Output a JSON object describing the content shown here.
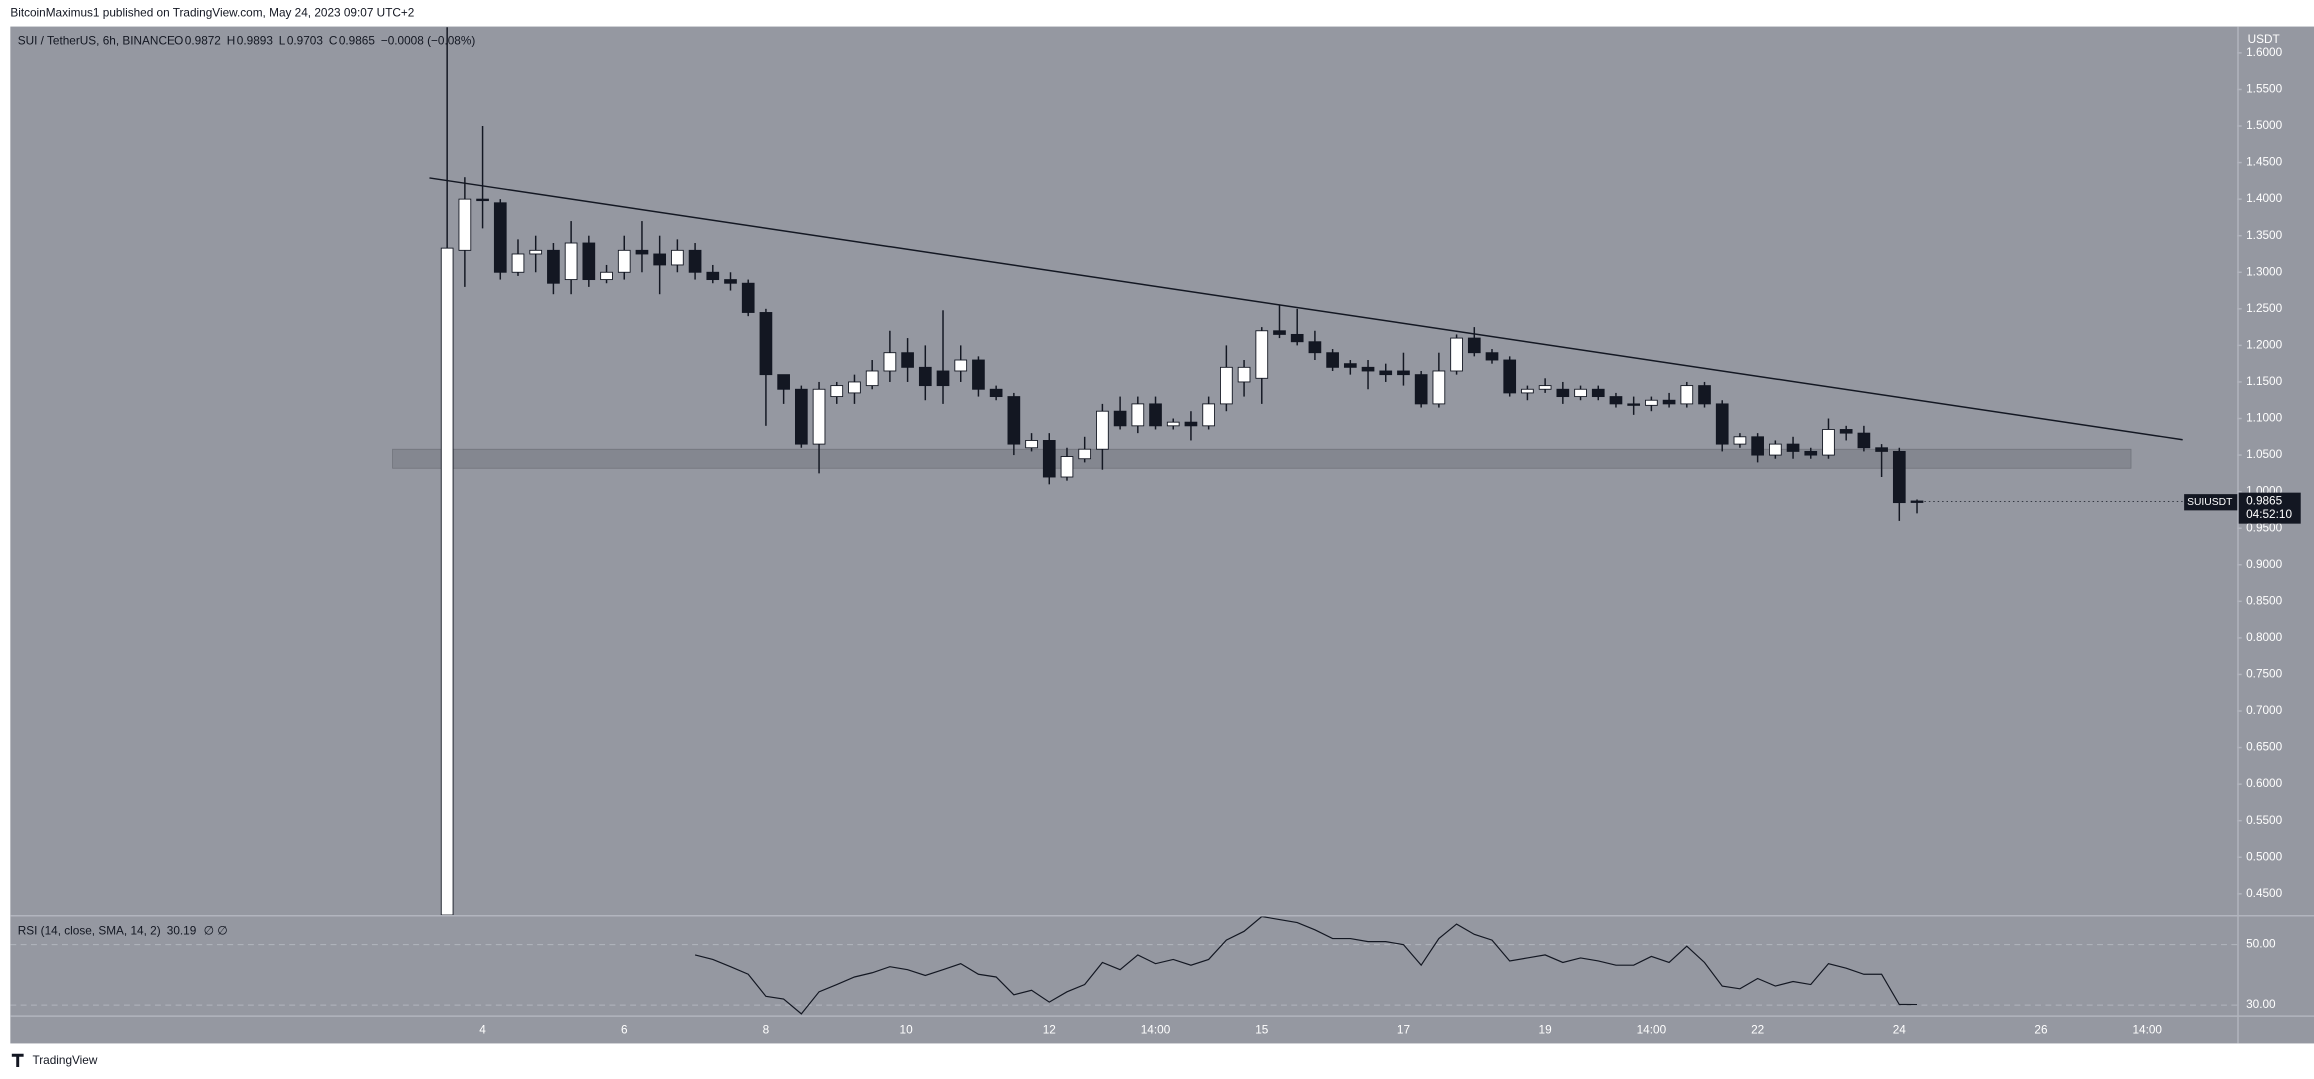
{
  "header": {
    "published": "BitcoinMaximus1 published on TradingView.com, May 24, 2023 09:07 UTC+2"
  },
  "chart_data": {
    "type": "candlestick",
    "title": "SUI / TetherUS, 6h, BINANCE",
    "readout": [
      {
        "key": "O",
        "value": "0.9872"
      },
      {
        "key": "H",
        "value": "0.9893"
      },
      {
        "key": "L",
        "value": "0.9703"
      },
      {
        "key": "C",
        "value": "0.9865"
      }
    ],
    "change": "−0.0008 (−0.08%)",
    "y_axis_label": "USDT",
    "x_tick_labels": [
      "4",
      "6",
      "8",
      "10",
      "12",
      "14:00",
      "15",
      "17",
      "19",
      "14:00",
      "22",
      "24",
      "26",
      "14:00"
    ],
    "ylim": [
      0.421,
      1.636
    ],
    "yticks": [
      {
        "value": 0.45,
        "label": "0.4500"
      },
      {
        "value": 0.5,
        "label": "0.5000"
      },
      {
        "value": 0.55,
        "label": "0.5500"
      },
      {
        "value": 0.6,
        "label": "0.6000"
      },
      {
        "value": 0.65,
        "label": "0.6500"
      },
      {
        "value": 0.7,
        "label": "0.7000"
      },
      {
        "value": 0.75,
        "label": "0.7500"
      },
      {
        "value": 0.8,
        "label": "0.8000"
      },
      {
        "value": 0.85,
        "label": "0.8500"
      },
      {
        "value": 0.9,
        "label": "0.9000"
      },
      {
        "value": 0.95,
        "label": "0.9500"
      },
      {
        "value": 1.0,
        "label": "1.0000"
      },
      {
        "value": 1.05,
        "label": "1.0500"
      },
      {
        "value": 1.1,
        "label": "1.1000"
      },
      {
        "value": 1.15,
        "label": "1.1500"
      },
      {
        "value": 1.2,
        "label": "1.2000"
      },
      {
        "value": 1.25,
        "label": "1.2500"
      },
      {
        "value": 1.3,
        "label": "1.3000"
      },
      {
        "value": 1.35,
        "label": "1.3500"
      },
      {
        "value": 1.4,
        "label": "1.4000"
      },
      {
        "value": 1.45,
        "label": "1.4500"
      },
      {
        "value": 1.5,
        "label": "1.5000"
      },
      {
        "value": 1.55,
        "label": "1.5500"
      },
      {
        "value": 1.6,
        "label": "1.6000"
      }
    ],
    "series": [
      {
        "name": "SUIUSDT",
        "up_color": "#ffffff",
        "down_color": "#131722",
        "wick_color": "#131722",
        "open": [
          0.421,
          1.33,
          1.4,
          1.395,
          1.3,
          1.325,
          1.33,
          1.29,
          1.34,
          1.29,
          1.3,
          1.33,
          1.325,
          1.31,
          1.33,
          1.3,
          1.29,
          1.285,
          1.245,
          1.16,
          1.14,
          1.065,
          1.13,
          1.135,
          1.145,
          1.165,
          1.19,
          1.17,
          1.165,
          1.165,
          1.18,
          1.14,
          1.13,
          1.06,
          1.07,
          1.02,
          1.045,
          1.058,
          1.11,
          1.09,
          1.12,
          1.09,
          1.095,
          1.09,
          1.12,
          1.15,
          1.155,
          1.22,
          1.215,
          1.205,
          1.19,
          1.175,
          1.17,
          1.165,
          1.165,
          1.16,
          1.12,
          1.165,
          1.21,
          1.19,
          1.18,
          1.135,
          1.14,
          1.14,
          1.13,
          1.14,
          1.13,
          1.12,
          1.118,
          1.125,
          1.12,
          1.145,
          1.12,
          1.065,
          1.075,
          1.05,
          1.065,
          1.055,
          1.05,
          1.085,
          1.08,
          1.06,
          1.055,
          0.9872
        ],
        "high": [
          1.635,
          1.43,
          1.5,
          1.4,
          1.345,
          1.35,
          1.34,
          1.37,
          1.35,
          1.31,
          1.35,
          1.37,
          1.35,
          1.345,
          1.34,
          1.31,
          1.3,
          1.29,
          1.25,
          1.16,
          1.145,
          1.15,
          1.15,
          1.16,
          1.18,
          1.22,
          1.21,
          1.2,
          1.248,
          1.2,
          1.185,
          1.145,
          1.135,
          1.08,
          1.08,
          1.06,
          1.075,
          1.12,
          1.13,
          1.13,
          1.13,
          1.1,
          1.11,
          1.13,
          1.2,
          1.18,
          1.225,
          1.255,
          1.25,
          1.22,
          1.195,
          1.18,
          1.18,
          1.175,
          1.19,
          1.165,
          1.19,
          1.215,
          1.225,
          1.195,
          1.185,
          1.145,
          1.155,
          1.15,
          1.145,
          1.145,
          1.135,
          1.13,
          1.13,
          1.135,
          1.15,
          1.15,
          1.125,
          1.08,
          1.08,
          1.07,
          1.075,
          1.06,
          1.1,
          1.09,
          1.09,
          1.065,
          1.06,
          0.9893
        ],
        "low": [
          0.421,
          1.28,
          1.36,
          1.29,
          1.295,
          1.3,
          1.27,
          1.27,
          1.28,
          1.285,
          1.29,
          1.3,
          1.27,
          1.3,
          1.29,
          1.285,
          1.275,
          1.24,
          1.09,
          1.12,
          1.06,
          1.025,
          1.12,
          1.12,
          1.14,
          1.15,
          1.15,
          1.125,
          1.12,
          1.15,
          1.13,
          1.125,
          1.05,
          1.055,
          1.01,
          1.015,
          1.04,
          1.03,
          1.085,
          1.08,
          1.085,
          1.085,
          1.07,
          1.085,
          1.11,
          1.13,
          1.12,
          1.21,
          1.2,
          1.18,
          1.165,
          1.16,
          1.14,
          1.15,
          1.145,
          1.115,
          1.115,
          1.16,
          1.185,
          1.175,
          1.13,
          1.125,
          1.135,
          1.12,
          1.125,
          1.125,
          1.115,
          1.105,
          1.11,
          1.115,
          1.115,
          1.115,
          1.055,
          1.06,
          1.04,
          1.045,
          1.045,
          1.045,
          1.045,
          1.07,
          1.055,
          1.02,
          0.96,
          0.9703
        ],
        "close": [
          1.333,
          1.4,
          1.398,
          1.3,
          1.325,
          1.33,
          1.285,
          1.34,
          1.29,
          1.3,
          1.33,
          1.325,
          1.31,
          1.33,
          1.3,
          1.29,
          1.285,
          1.245,
          1.16,
          1.14,
          1.065,
          1.14,
          1.145,
          1.15,
          1.165,
          1.19,
          1.17,
          1.145,
          1.145,
          1.18,
          1.14,
          1.13,
          1.065,
          1.07,
          1.02,
          1.048,
          1.058,
          1.11,
          1.09,
          1.12,
          1.09,
          1.095,
          1.09,
          1.12,
          1.17,
          1.17,
          1.22,
          1.215,
          1.205,
          1.19,
          1.17,
          1.17,
          1.165,
          1.16,
          1.16,
          1.12,
          1.165,
          1.21,
          1.19,
          1.18,
          1.135,
          1.14,
          1.145,
          1.13,
          1.14,
          1.13,
          1.12,
          1.118,
          1.125,
          1.12,
          1.145,
          1.12,
          1.065,
          1.075,
          1.05,
          1.065,
          1.055,
          1.05,
          1.085,
          1.08,
          1.06,
          1.055,
          0.985,
          0.9865
        ]
      }
    ],
    "last_price_label": "0.9865",
    "countdown": "04:52:10",
    "trendline": {
      "start": 1.429,
      "end": 1.071,
      "color": "#131722"
    },
    "support_zone": {
      "low": 1.032,
      "high": 1.058,
      "color": "#7f828b"
    },
    "indicator": {
      "type": "line",
      "title": "RSI (14, close, SMA, 14, 2)",
      "last_value_label": "30.19",
      "flags": "∅ ∅",
      "color": "#131722",
      "ylim": [
        26.6,
        59.3
      ],
      "yticks": [
        {
          "value": 50,
          "label": "50.00"
        },
        {
          "value": 30,
          "label": "30.00"
        }
      ],
      "values": [
        null,
        null,
        null,
        null,
        null,
        null,
        null,
        null,
        null,
        null,
        null,
        null,
        null,
        null,
        46.6,
        45.1,
        42.7,
        40.2,
        32.9,
        32.0,
        27.1,
        34.4,
        36.8,
        39.3,
        40.7,
        42.7,
        41.7,
        39.8,
        41.7,
        43.7,
        40.2,
        39.3,
        33.4,
        34.9,
        31.0,
        34.4,
        36.8,
        44.1,
        41.7,
        46.6,
        43.7,
        45.1,
        43.2,
        45.1,
        51.5,
        54.4,
        59.3,
        58.3,
        57.3,
        54.9,
        52.0,
        52.0,
        51.0,
        51.0,
        50.0,
        43.2,
        52.0,
        56.8,
        53.4,
        51.5,
        44.6,
        45.6,
        46.6,
        44.1,
        45.6,
        44.6,
        43.2,
        43.2,
        46.1,
        44.1,
        49.5,
        44.1,
        36.3,
        35.4,
        38.8,
        36.3,
        37.8,
        36.8,
        43.7,
        42.2,
        40.2,
        40.2,
        30.2,
        30.19
      ]
    }
  },
  "footer": {
    "brand": "TradingView"
  }
}
